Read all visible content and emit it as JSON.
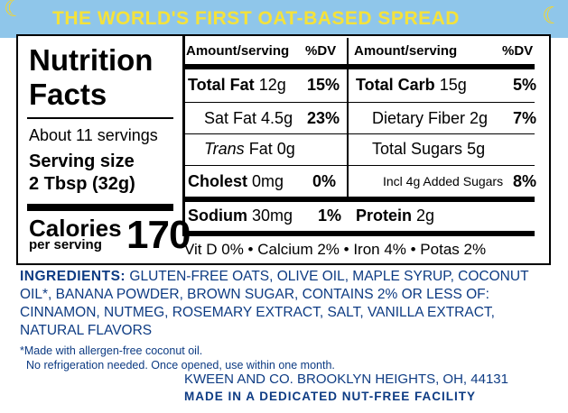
{
  "banner": {
    "title": "THE WORLD'S FIRST OAT-BASED SPREAD"
  },
  "panel": {
    "title_line1": "Nutrition",
    "title_line2": "Facts",
    "servings": "About 11 servings",
    "serving_size_label": "Serving size",
    "serving_size_value": "2 Tbsp (32g)",
    "calories_label": "Calories",
    "calories_sub": "per serving",
    "calories_value": "170",
    "left_header": {
      "amount": "Amount/serving",
      "dv": "%DV"
    },
    "right_header": {
      "amount": "Amount/serving",
      "dv": "%DV"
    },
    "left_rows": [
      {
        "name": "Total Fat",
        "amount": "12g",
        "dv": "15%"
      },
      {
        "name": "Sat Fat",
        "amount": "4.5g",
        "dv": "23%"
      },
      {
        "name": "Trans",
        "amount": "Fat 0g",
        "dv": ""
      },
      {
        "name": "Cholest",
        "amount": "0mg",
        "dv": "0%"
      },
      {
        "name": "Sodium",
        "amount": "30mg",
        "dv": "1%"
      }
    ],
    "right_rows": [
      {
        "name": "Total Carb",
        "amount": "15g",
        "dv": "5%"
      },
      {
        "name": "Dietary Fiber",
        "amount": "2g",
        "dv": "7%"
      },
      {
        "name": "Total Sugars",
        "amount": "5g",
        "dv": ""
      },
      {
        "name": "Incl 4g Added Sugars",
        "amount": "",
        "dv": "8%"
      },
      {
        "name": "Protein",
        "amount": "2g",
        "dv": ""
      }
    ],
    "vitamins": "Vit D 0% • Calcium 2% • Iron 4% • Potas 2%"
  },
  "ingredients": {
    "label": "INGREDIENTS:",
    "text": "GLUTEN-FREE OATS, OLIVE OIL, MAPLE SYRUP, COCONUT OIL*, BANANA POWDER, BROWN SUGAR, CONTAINS 2% OR LESS OF: CINNAMON, NUTMEG, ROSEMARY EXTRACT, SALT, VANILLA EXTRACT, NATURAL FLAVORS"
  },
  "footnotes": {
    "line1": "*Made with allergen-free coconut oil.",
    "line2": "No refrigeration needed. Once opened, use within one month."
  },
  "company": {
    "address": "KWEEN AND CO. BROOKLYN HEIGHTS, OH, 44131",
    "facility": "MADE IN A DEDICATED NUT-FREE FACILITY"
  },
  "colors": {
    "banner_bg": "#8fc6ea",
    "banner_text": "#f5e23a",
    "ink_blue": "#0d3b83"
  }
}
